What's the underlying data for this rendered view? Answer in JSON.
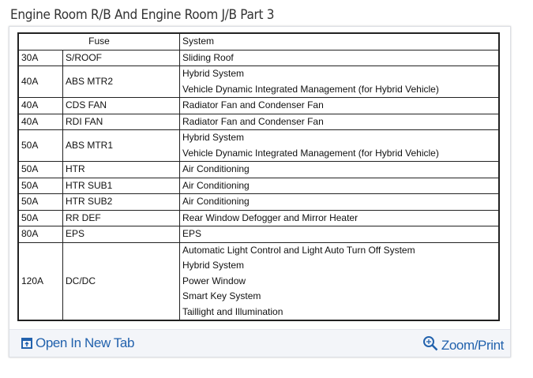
{
  "title": "Engine Room R/B And Engine Room J/B Part 3",
  "table": {
    "headers": [
      "Fuse",
      "System"
    ],
    "rows": [
      {
        "amp": "30A",
        "name": "S/ROOF",
        "systems": [
          "Sliding Roof"
        ]
      },
      {
        "amp": "40A",
        "name": "ABS MTR2",
        "systems": [
          "Hybrid System",
          "Vehicle Dynamic Integrated Management (for Hybrid Vehicle)"
        ]
      },
      {
        "amp": "40A",
        "name": "CDS FAN",
        "systems": [
          "Radiator Fan and Condenser Fan"
        ]
      },
      {
        "amp": "40A",
        "name": "RDI FAN",
        "systems": [
          "Radiator Fan and Condenser Fan"
        ]
      },
      {
        "amp": "50A",
        "name": "ABS MTR1",
        "systems": [
          "Hybrid System",
          "Vehicle Dynamic Integrated Management (for Hybrid Vehicle)"
        ]
      },
      {
        "amp": "50A",
        "name": "HTR",
        "systems": [
          "Air Conditioning"
        ]
      },
      {
        "amp": "50A",
        "name": "HTR SUB1",
        "systems": [
          "Air Conditioning"
        ]
      },
      {
        "amp": "50A",
        "name": "HTR SUB2",
        "systems": [
          "Air Conditioning"
        ]
      },
      {
        "amp": "50A",
        "name": "RR DEF",
        "systems": [
          "Rear Window Defogger and Mirror Heater"
        ]
      },
      {
        "amp": "80A",
        "name": "EPS",
        "systems": [
          "EPS"
        ]
      },
      {
        "amp": "120A",
        "name": "DC/DC",
        "systems": [
          "Automatic Light Control and Light Auto Turn Off System",
          "Hybrid System",
          "Power Window",
          "Smart Key System",
          "Taillight and Illumination"
        ]
      }
    ]
  },
  "footer": {
    "open_label": "Open In New Tab",
    "open_icon": "open-new-tab-icon",
    "zoom_label": "Zoom/Print",
    "zoom_icon": "zoom-in-icon",
    "link_color": "#2262ad"
  }
}
